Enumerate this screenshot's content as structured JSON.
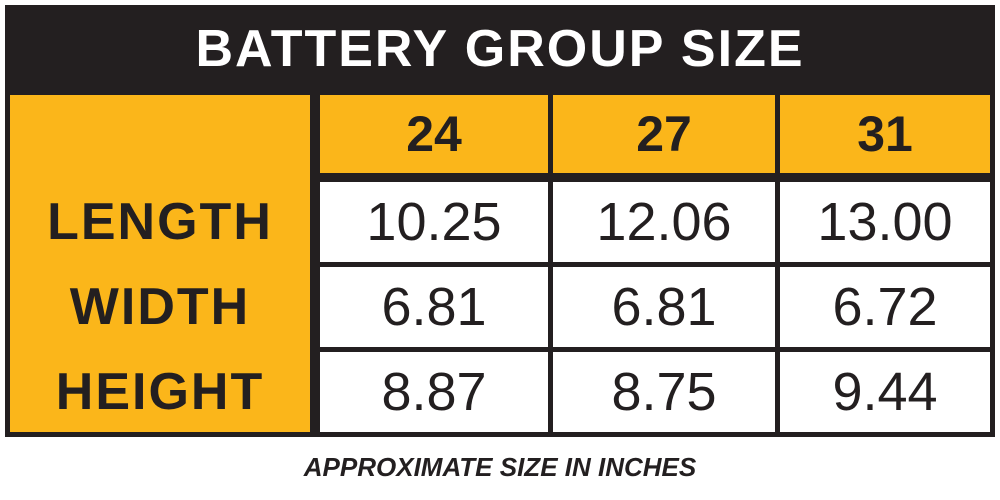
{
  "table": {
    "title": "BATTERY GROUP SIZE",
    "columns": [
      "24",
      "27",
      "31"
    ],
    "rows": [
      {
        "label": "LENGTH",
        "values": [
          "10.25",
          "12.06",
          "13.00"
        ]
      },
      {
        "label": "WIDTH",
        "values": [
          "6.81",
          "6.81",
          "6.72"
        ]
      },
      {
        "label": "HEIGHT",
        "values": [
          "8.87",
          "8.75",
          "9.44"
        ]
      }
    ],
    "caption": "APPROXIMATE SIZE IN INCHES"
  }
}
